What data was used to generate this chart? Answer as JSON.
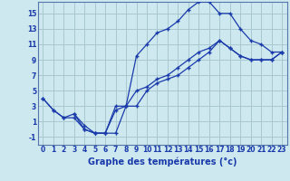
{
  "title": "Graphe des températures (°c)",
  "background_color": "#cde8ef",
  "grid_color": "#a8c8d0",
  "line_color": "#1a3aaa",
  "x_ticks": [
    0,
    1,
    2,
    3,
    4,
    5,
    6,
    7,
    8,
    9,
    10,
    11,
    12,
    13,
    14,
    15,
    16,
    17,
    18,
    19,
    20,
    21,
    22,
    23
  ],
  "y_ticks": [
    -1,
    1,
    3,
    5,
    7,
    9,
    11,
    13,
    15
  ],
  "ylim": [
    -2.0,
    16.5
  ],
  "xlim": [
    -0.5,
    23.5
  ],
  "series1_x": [
    0,
    1,
    2,
    3,
    4,
    5,
    6,
    7,
    8,
    9,
    10,
    11,
    12,
    13,
    14,
    15,
    16,
    17,
    18,
    19,
    20,
    21,
    22,
    23
  ],
  "series1_y": [
    4,
    2.5,
    1.5,
    2,
    0.5,
    -0.5,
    -0.5,
    3,
    3,
    9.5,
    11,
    12.5,
    13,
    14,
    15.5,
    16.5,
    16.5,
    15,
    15,
    13,
    11.5,
    11,
    10,
    10
  ],
  "series2_x": [
    0,
    1,
    2,
    3,
    4,
    5,
    6,
    7,
    8,
    9,
    10,
    11,
    12,
    13,
    14,
    15,
    16,
    17,
    18,
    19,
    20,
    21,
    22,
    23
  ],
  "series2_y": [
    4,
    2.5,
    1.5,
    1.5,
    0,
    -0.5,
    -0.5,
    2.5,
    3,
    5,
    5.5,
    6.5,
    7,
    8,
    9,
    10,
    10.5,
    11.5,
    10.5,
    9.5,
    9,
    9,
    9,
    10
  ],
  "series3_x": [
    3,
    4,
    5,
    6,
    7,
    8,
    9,
    10,
    11,
    12,
    13,
    14,
    15,
    16,
    17,
    18,
    19,
    20,
    21,
    22,
    23
  ],
  "series3_y": [
    2,
    0,
    -0.5,
    -0.5,
    -0.5,
    3,
    3,
    5,
    6,
    6.5,
    7,
    8,
    9,
    10,
    11.5,
    10.5,
    9.5,
    9,
    9,
    9,
    10
  ],
  "xlabel_fontsize": 7,
  "tick_fontsize": 5.5
}
